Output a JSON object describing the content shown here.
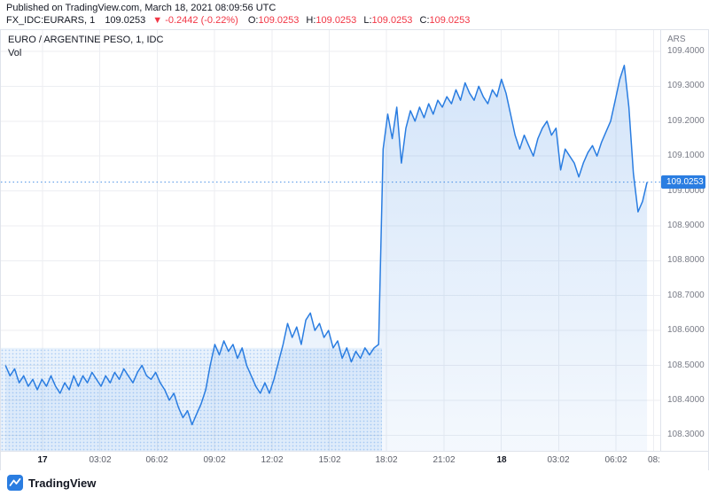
{
  "header": {
    "published_line": "Published on TradingView.com, March 18, 2021 08:09:56 UTC",
    "symbol": "FX_IDC:EURARS, 1",
    "last_price": "109.0253",
    "change": "▼ -0.2442 (-0.22%)",
    "ohlc": [
      {
        "label": "O:",
        "value": "109.0253"
      },
      {
        "label": "H:",
        "value": "109.0253"
      },
      {
        "label": "L:",
        "value": "109.0253"
      },
      {
        "label": "C:",
        "value": "109.0253"
      }
    ]
  },
  "chart": {
    "title": "EURO / ARGENTINE PESO, 1, IDC",
    "indicator_label": "Vol",
    "axis_currency": "ARS"
  },
  "footer": {
    "logo_text": "TradingView"
  },
  "colors": {
    "accent_blue": "#2a7de1",
    "badge_blue": "#2a7de1",
    "negative_red": "#f23645",
    "text_dark": "#131722",
    "axis_gray": "#787b86",
    "grid": "#eceef2",
    "border": "#dfe3eb"
  },
  "chart_data": {
    "type": "area",
    "title": "EURO / ARGENTINE PESO, 1, IDC",
    "symbol": "EUR/ARS",
    "interval": "1 minute",
    "legend_position": "top-left",
    "grid": true,
    "y_axis": {
      "min": 108.255,
      "max": 109.461,
      "currency": "ARS"
    },
    "y_ticks": [
      {
        "value": 109.4,
        "label": "109.4000"
      },
      {
        "value": 109.3,
        "label": "109.3000"
      },
      {
        "value": 109.2,
        "label": "109.2000"
      },
      {
        "value": 109.1,
        "label": "109.1000"
      },
      {
        "value": 109.0,
        "label": "109.0000"
      },
      {
        "value": 108.9,
        "label": "108.9000"
      },
      {
        "value": 108.8,
        "label": "108.8000"
      },
      {
        "value": 108.7,
        "label": "108.7000"
      },
      {
        "value": 108.6,
        "label": "108.6000"
      },
      {
        "value": 108.5,
        "label": "108.5000"
      },
      {
        "value": 108.4,
        "label": "108.4000"
      },
      {
        "value": 108.3,
        "label": "108.3000"
      }
    ],
    "x_ticks": [
      {
        "f": 0.063,
        "label": "17",
        "major": true
      },
      {
        "f": 0.15,
        "label": "03:02",
        "major": false
      },
      {
        "f": 0.237,
        "label": "06:02",
        "major": false
      },
      {
        "f": 0.324,
        "label": "09:02",
        "major": false
      },
      {
        "f": 0.411,
        "label": "12:02",
        "major": false
      },
      {
        "f": 0.498,
        "label": "15:02",
        "major": false
      },
      {
        "f": 0.585,
        "label": "18:02",
        "major": false
      },
      {
        "f": 0.672,
        "label": "21:02",
        "major": false
      },
      {
        "f": 0.759,
        "label": "18",
        "major": true
      },
      {
        "f": 0.846,
        "label": "03:02",
        "major": false
      },
      {
        "f": 0.933,
        "label": "06:02",
        "major": false
      },
      {
        "f": 0.99,
        "label": "08:",
        "major": false
      }
    ],
    "series": {
      "name": "EUR/ARS close",
      "x_start_frac": 0.007,
      "x_end_frac": 0.98,
      "prices": [
        108.5,
        108.47,
        108.49,
        108.45,
        108.47,
        108.44,
        108.46,
        108.43,
        108.46,
        108.44,
        108.47,
        108.44,
        108.42,
        108.45,
        108.43,
        108.47,
        108.44,
        108.47,
        108.45,
        108.48,
        108.46,
        108.44,
        108.47,
        108.45,
        108.48,
        108.46,
        108.49,
        108.47,
        108.45,
        108.48,
        108.5,
        108.47,
        108.46,
        108.48,
        108.45,
        108.43,
        108.4,
        108.42,
        108.38,
        108.35,
        108.37,
        108.33,
        108.36,
        108.39,
        108.43,
        108.5,
        108.56,
        108.53,
        108.57,
        108.54,
        108.56,
        108.52,
        108.55,
        108.5,
        108.47,
        108.44,
        108.42,
        108.45,
        108.42,
        108.46,
        108.51,
        108.56,
        108.62,
        108.58,
        108.61,
        108.56,
        108.63,
        108.65,
        108.6,
        108.62,
        108.58,
        108.6,
        108.55,
        108.57,
        108.52,
        108.55,
        108.51,
        108.54,
        108.52,
        108.55,
        108.53,
        108.55,
        108.56,
        109.12,
        109.22,
        109.15,
        109.24,
        109.08,
        109.18,
        109.23,
        109.2,
        109.24,
        109.21,
        109.25,
        109.22,
        109.26,
        109.24,
        109.27,
        109.25,
        109.29,
        109.26,
        109.31,
        109.28,
        109.26,
        109.3,
        109.27,
        109.25,
        109.29,
        109.27,
        109.32,
        109.28,
        109.22,
        109.16,
        109.12,
        109.16,
        109.13,
        109.1,
        109.15,
        109.18,
        109.2,
        109.16,
        109.18,
        109.06,
        109.12,
        109.1,
        109.08,
        109.04,
        109.08,
        109.11,
        109.13,
        109.1,
        109.14,
        109.17,
        109.2,
        109.26,
        109.32,
        109.36,
        109.24,
        109.05,
        108.94,
        108.97,
        109.025
      ]
    },
    "current_price": 109.0253,
    "current_price_label": "109.0253",
    "left_texture_region": {
      "x0_frac": 0.0,
      "x1_frac": 0.578,
      "top_price": 108.55
    },
    "line_color": "#2a7de1",
    "fill_top": "rgba(42,125,225,0.20)",
    "fill_bottom": "rgba(42,125,225,0.05)"
  }
}
